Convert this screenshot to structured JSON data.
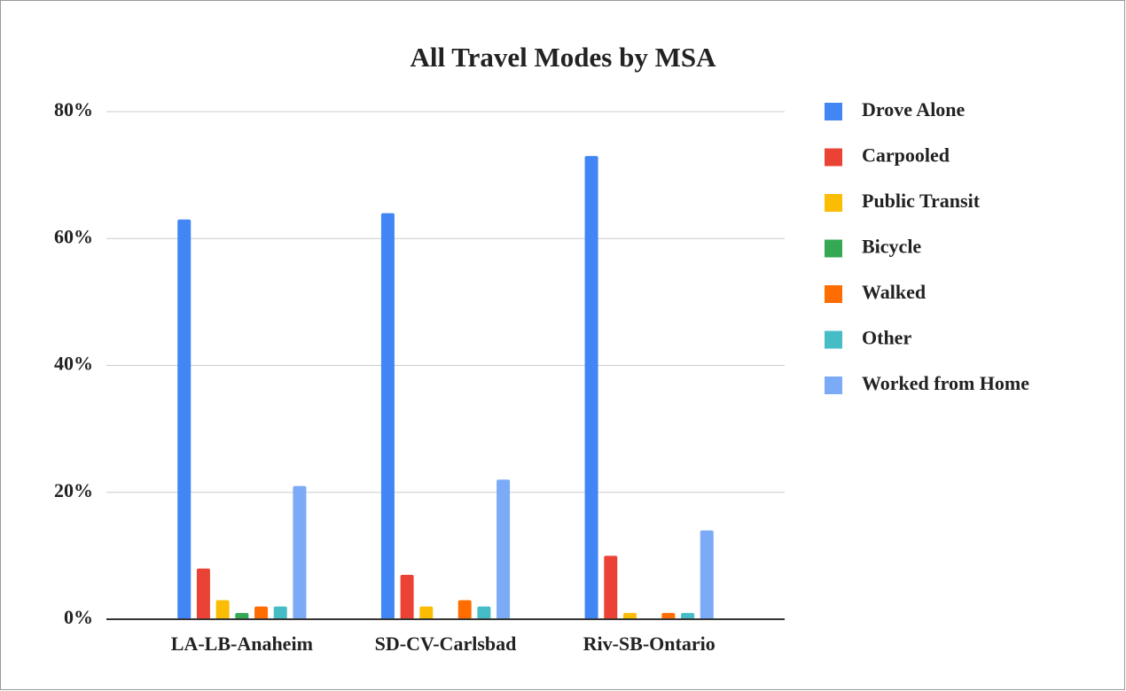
{
  "chart_data": {
    "type": "bar",
    "title": "All Travel Modes by MSA",
    "categories": [
      "LA-LB-Anaheim",
      "SD-CV-Carlsbad",
      "Riv-SB-Ontario"
    ],
    "series": [
      {
        "name": "Drove Alone",
        "color": "#4285f4",
        "values": [
          63,
          64,
          73
        ]
      },
      {
        "name": "Carpooled",
        "color": "#ea4335",
        "values": [
          8,
          7,
          10
        ]
      },
      {
        "name": "Public Transit",
        "color": "#fbbc04",
        "values": [
          3,
          2,
          1
        ]
      },
      {
        "name": "Bicycle",
        "color": "#34a853",
        "values": [
          1,
          0,
          0
        ]
      },
      {
        "name": "Walked",
        "color": "#ff6d01",
        "values": [
          2,
          3,
          1
        ]
      },
      {
        "name": "Other",
        "color": "#46bdc6",
        "values": [
          2,
          2,
          1
        ]
      },
      {
        "name": "Worked from Home",
        "color": "#7baaf7",
        "values": [
          21,
          22,
          14
        ]
      }
    ],
    "ylim": [
      0,
      80
    ],
    "yticks": [
      {
        "value": 0,
        "label": "0%"
      },
      {
        "value": 20,
        "label": "20%"
      },
      {
        "value": 40,
        "label": "40%"
      },
      {
        "value": 60,
        "label": "60%"
      },
      {
        "value": 80,
        "label": "80%"
      }
    ],
    "grid": true,
    "legend": "right"
  }
}
